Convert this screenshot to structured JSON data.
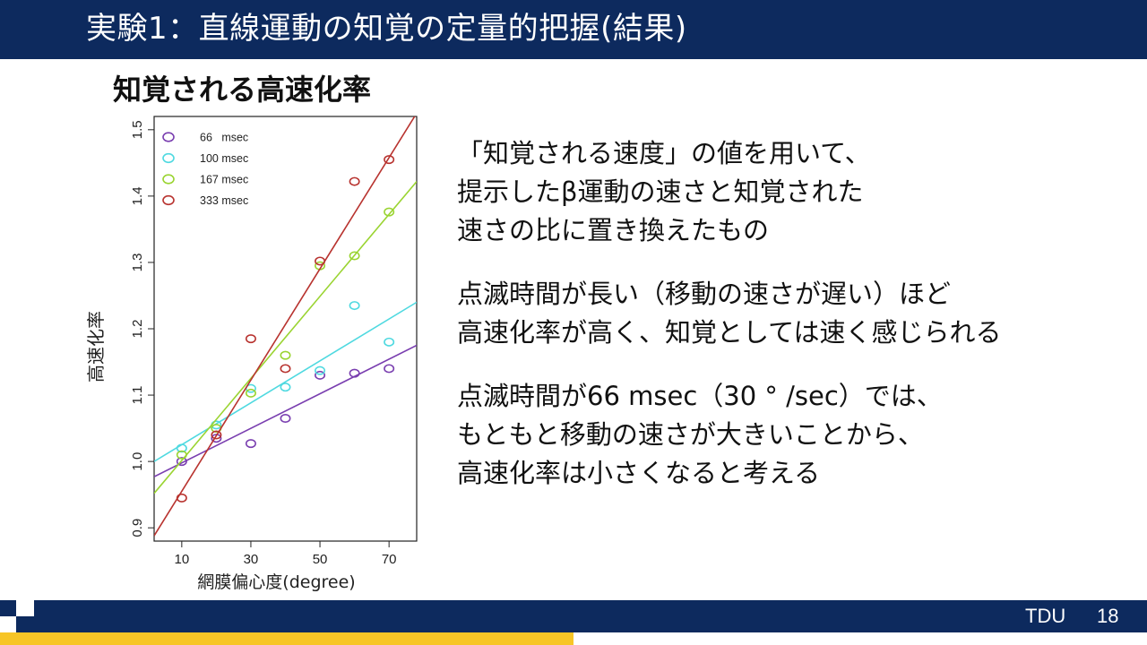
{
  "slide": {
    "title": "実験1：直線運動の知覚の定量的把握(結果)",
    "subtitle": "知覚される高速化率",
    "footer_org": "TDU",
    "page_number": "18"
  },
  "colors": {
    "header": "#0d2a5e",
    "accent_yellow": "#f7c526",
    "series": [
      "#7a3fb0",
      "#4fd9e0",
      "#9ad431",
      "#b8332f"
    ]
  },
  "body": {
    "paragraphs": [
      {
        "lines": [
          "「知覚される速度」の値を用いて、",
          "提示したβ運動の速さと知覚された",
          "速さの比に置き換えたもの"
        ]
      },
      {
        "lines": [
          "点滅時間が長い（移動の速さが遅い）ほど",
          "高速化率が高く、知覚としては速く感じられる"
        ]
      },
      {
        "lines": [
          "点滅時間が66 msec（30 ° /sec）では、",
          "もともと移動の速さが大きいことから、",
          "高速化率は小さくなると考える"
        ]
      }
    ]
  },
  "chart_data": {
    "type": "scatter",
    "xlabel": "網膜偏心度(degree)",
    "ylabel": "高速化率",
    "xlim": [
      2,
      78
    ],
    "ylim": [
      0.88,
      1.52
    ],
    "xticks": [
      10,
      30,
      50,
      70
    ],
    "yticks": [
      0.9,
      1.0,
      1.1,
      1.2,
      1.3,
      1.4,
      1.5
    ],
    "legend_position": "top-left",
    "grid": false,
    "series": [
      {
        "name": "66   msec",
        "color": "#7a3fb0",
        "points": [
          [
            10,
            1.0
          ],
          [
            20,
            1.035
          ],
          [
            30,
            1.027
          ],
          [
            40,
            1.065
          ],
          [
            50,
            1.13
          ],
          [
            60,
            1.133
          ],
          [
            70,
            1.14
          ]
        ],
        "fit": [
          [
            2,
            0.977
          ],
          [
            78,
            1.175
          ]
        ]
      },
      {
        "name": "100 msec",
        "color": "#4fd9e0",
        "points": [
          [
            10,
            1.02
          ],
          [
            20,
            1.055
          ],
          [
            30,
            1.11
          ],
          [
            40,
            1.112
          ],
          [
            50,
            1.137
          ],
          [
            60,
            1.235
          ],
          [
            70,
            1.18
          ]
        ],
        "fit": [
          [
            2,
            1.0
          ],
          [
            78,
            1.24
          ]
        ]
      },
      {
        "name": "167 msec",
        "color": "#9ad431",
        "points": [
          [
            10,
            1.01
          ],
          [
            20,
            1.05
          ],
          [
            30,
            1.103
          ],
          [
            40,
            1.16
          ],
          [
            50,
            1.295
          ],
          [
            60,
            1.31
          ],
          [
            70,
            1.376
          ]
        ],
        "fit": [
          [
            2,
            0.952
          ],
          [
            78,
            1.422
          ]
        ]
      },
      {
        "name": "333 msec",
        "color": "#b8332f",
        "points": [
          [
            10,
            0.945
          ],
          [
            20,
            1.04
          ],
          [
            30,
            1.185
          ],
          [
            40,
            1.14
          ],
          [
            50,
            1.302
          ],
          [
            60,
            1.422
          ],
          [
            70,
            1.455
          ]
        ],
        "fit": [
          [
            2,
            0.888
          ],
          [
            78,
            1.525
          ]
        ]
      }
    ]
  }
}
